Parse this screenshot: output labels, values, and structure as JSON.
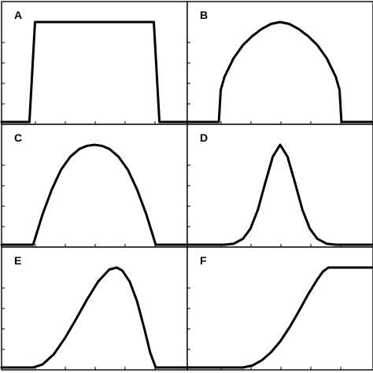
{
  "colors": {
    "line": "#000000",
    "background": "#ffffff"
  },
  "chart_data": [
    {
      "type": "line",
      "label": "A",
      "title": "",
      "xlabel": "",
      "ylabel": "",
      "xlim": [
        0,
        1
      ],
      "ylim": [
        0,
        1
      ],
      "x": [
        0,
        0.15,
        0.18,
        0.82,
        0.85,
        1
      ],
      "y": [
        0,
        0,
        1,
        1,
        0,
        0
      ],
      "grid": false
    },
    {
      "type": "line",
      "label": "B",
      "title": "",
      "xlabel": "",
      "ylabel": "",
      "xlim": [
        0,
        1
      ],
      "ylim": [
        0,
        1
      ],
      "x": [
        0,
        0.17,
        0.18,
        0.2,
        0.25,
        0.3,
        0.35,
        0.4,
        0.45,
        0.5,
        0.55,
        0.6,
        0.65,
        0.7,
        0.75,
        0.8,
        0.82,
        0.83,
        1
      ],
      "y": [
        0,
        0,
        0.32,
        0.45,
        0.64,
        0.77,
        0.86,
        0.93,
        0.98,
        1,
        0.98,
        0.93,
        0.86,
        0.77,
        0.64,
        0.45,
        0.32,
        0,
        0
      ],
      "grid": false
    },
    {
      "type": "line",
      "label": "C",
      "title": "",
      "xlabel": "",
      "ylabel": "",
      "xlim": [
        0,
        1
      ],
      "ylim": [
        0,
        1
      ],
      "x": [
        0,
        0.17,
        0.22,
        0.27,
        0.32,
        0.37,
        0.42,
        0.46,
        0.5,
        0.54,
        0.58,
        0.63,
        0.68,
        0.73,
        0.78,
        0.83,
        1
      ],
      "y": [
        0,
        0,
        0.3,
        0.55,
        0.75,
        0.88,
        0.96,
        0.99,
        1,
        0.99,
        0.96,
        0.88,
        0.75,
        0.55,
        0.3,
        0,
        0
      ],
      "grid": false
    },
    {
      "type": "line",
      "label": "D",
      "title": "",
      "xlabel": "",
      "ylabel": "",
      "xlim": [
        0,
        1
      ],
      "ylim": [
        0,
        1
      ],
      "x": [
        0,
        0.2,
        0.25,
        0.3,
        0.34,
        0.38,
        0.42,
        0.46,
        0.5,
        0.54,
        0.58,
        0.62,
        0.66,
        0.7,
        0.75,
        0.8,
        1
      ],
      "y": [
        0,
        0,
        0.01,
        0.06,
        0.16,
        0.35,
        0.62,
        0.88,
        1,
        0.88,
        0.62,
        0.35,
        0.16,
        0.06,
        0.01,
        0,
        0
      ],
      "grid": false
    },
    {
      "type": "line",
      "label": "E",
      "title": "",
      "xlabel": "",
      "ylabel": "",
      "xlim": [
        0,
        1
      ],
      "ylim": [
        0,
        1
      ],
      "x": [
        0,
        0.17,
        0.22,
        0.28,
        0.34,
        0.4,
        0.46,
        0.52,
        0.58,
        0.62,
        0.65,
        0.69,
        0.73,
        0.77,
        0.8,
        0.83,
        1
      ],
      "y": [
        0,
        0,
        0.03,
        0.13,
        0.29,
        0.48,
        0.68,
        0.86,
        0.98,
        1,
        0.97,
        0.86,
        0.66,
        0.38,
        0.15,
        0,
        0
      ],
      "grid": false
    },
    {
      "type": "line",
      "label": "F",
      "title": "",
      "xlabel": "",
      "ylabel": "",
      "xlim": [
        0,
        1
      ],
      "ylim": [
        0,
        1
      ],
      "x": [
        0,
        0.3,
        0.35,
        0.4,
        0.45,
        0.5,
        0.55,
        0.6,
        0.65,
        0.7,
        0.73,
        0.76,
        1
      ],
      "y": [
        0,
        0,
        0.02,
        0.07,
        0.15,
        0.26,
        0.4,
        0.56,
        0.73,
        0.88,
        0.96,
        1,
        1
      ],
      "grid": false
    }
  ]
}
